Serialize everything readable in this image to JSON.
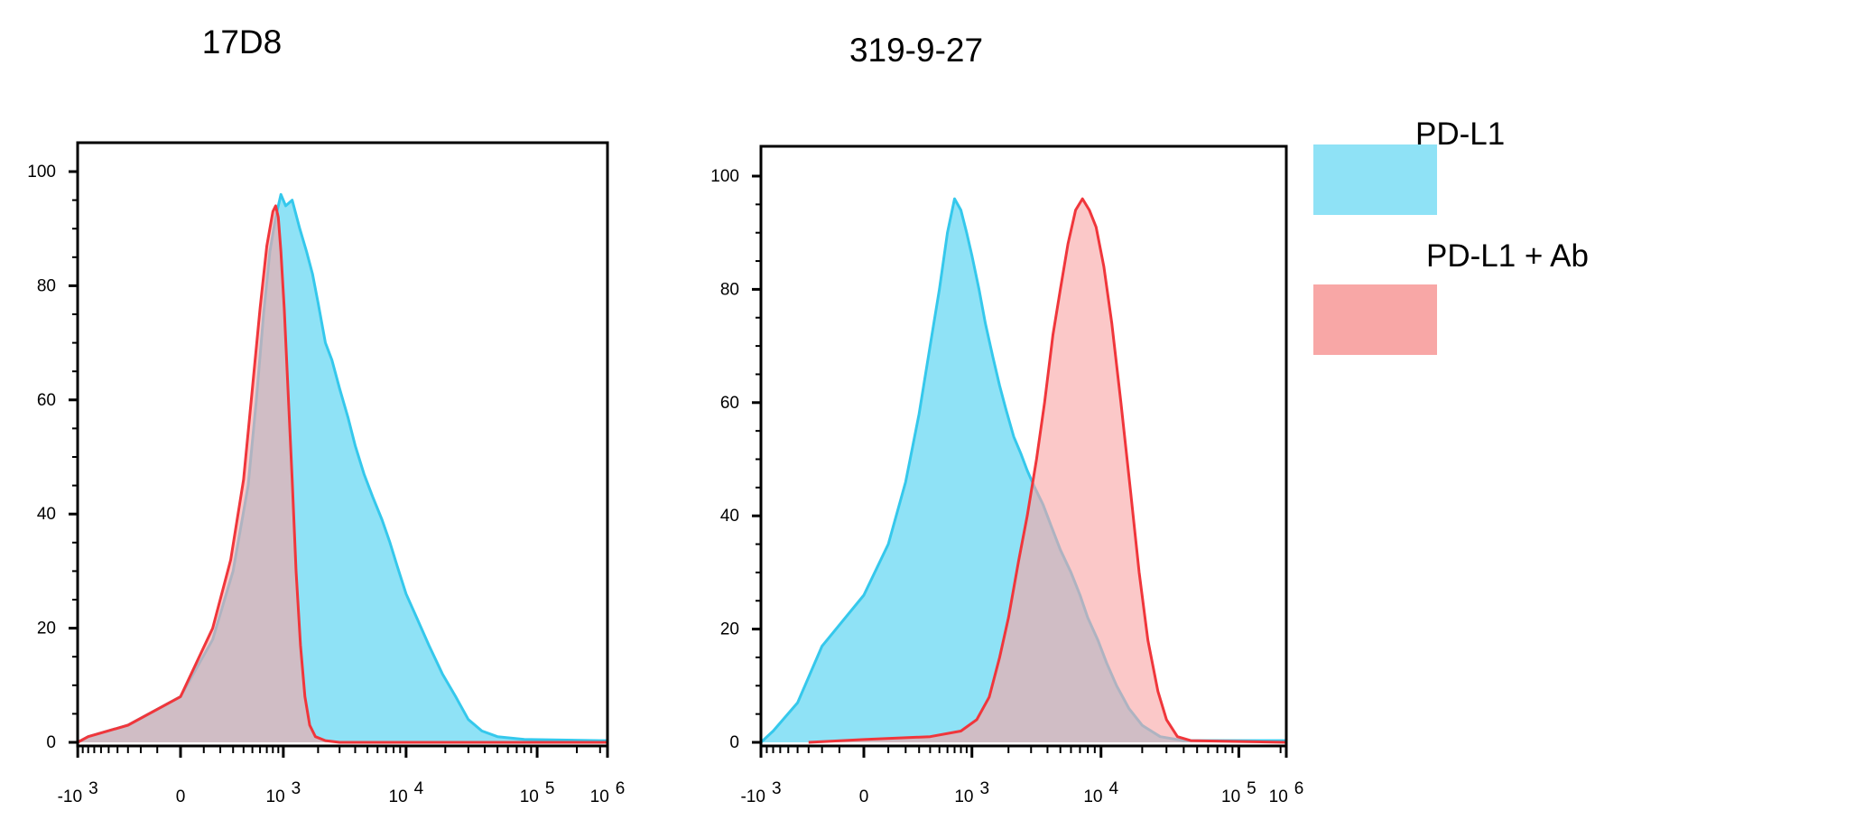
{
  "chart_data": [
    {
      "type": "area",
      "title": "17D8",
      "xscale": "biexponential",
      "x_ticks": [
        {
          "base": "-10",
          "exp": "3"
        },
        {
          "base": "0",
          "exp": ""
        },
        {
          "base": "10",
          "exp": "3"
        },
        {
          "base": "10",
          "exp": "4"
        },
        {
          "base": "10",
          "exp": "5"
        },
        {
          "base": "10",
          "exp": "6"
        }
      ],
      "y_ticks": [
        "0",
        "20",
        "40",
        "60",
        "80",
        "100"
      ],
      "ylim": [
        0,
        100
      ],
      "grid": false,
      "series": [
        {
          "name": "PD-L1",
          "color": "#35c8ec",
          "fill": "#8fe2f6",
          "points": [
            [
              -1800,
              0
            ],
            [
              -800,
              1
            ],
            [
              -300,
              3
            ],
            [
              0,
              8
            ],
            [
              150,
              18
            ],
            [
              300,
              30
            ],
            [
              450,
              45
            ],
            [
              550,
              60
            ],
            [
              650,
              75
            ],
            [
              750,
              86
            ],
            [
              850,
              92
            ],
            [
              950,
              96
            ],
            [
              1050,
              94
            ],
            [
              1200,
              95
            ],
            [
              1400,
              90
            ],
            [
              1600,
              86
            ],
            [
              1800,
              82
            ],
            [
              2000,
              77
            ],
            [
              2300,
              70
            ],
            [
              2600,
              67
            ],
            [
              3000,
              62
            ],
            [
              3500,
              57
            ],
            [
              4000,
              52
            ],
            [
              4700,
              47
            ],
            [
              5500,
              43
            ],
            [
              6500,
              39
            ],
            [
              7500,
              35
            ],
            [
              8500,
              31
            ],
            [
              10000,
              26
            ],
            [
              12000,
              22
            ],
            [
              15000,
              17
            ],
            [
              19000,
              12
            ],
            [
              24000,
              8
            ],
            [
              30000,
              4
            ],
            [
              38000,
              2
            ],
            [
              50000,
              1
            ],
            [
              80000,
              0.5
            ],
            [
              300000,
              0.3
            ],
            [
              1000000,
              0.3
            ]
          ]
        },
        {
          "name": "PD-L1 + Ab",
          "color": "#f0363b",
          "fill": "#f8a7a6",
          "points": [
            [
              -1800,
              0
            ],
            [
              -800,
              1
            ],
            [
              -300,
              3
            ],
            [
              0,
              8
            ],
            [
              150,
              20
            ],
            [
              280,
              32
            ],
            [
              400,
              46
            ],
            [
              500,
              62
            ],
            [
              600,
              76
            ],
            [
              700,
              87
            ],
            [
              800,
              93
            ],
            [
              850,
              94
            ],
            [
              900,
              92
            ],
            [
              950,
              86
            ],
            [
              1020,
              76
            ],
            [
              1100,
              62
            ],
            [
              1200,
              46
            ],
            [
              1300,
              30
            ],
            [
              1420,
              17
            ],
            [
              1550,
              8
            ],
            [
              1700,
              3
            ],
            [
              1900,
              1
            ],
            [
              2300,
              0.3
            ],
            [
              3000,
              0
            ],
            [
              1000000,
              0
            ]
          ]
        }
      ]
    },
    {
      "type": "area",
      "title": "319-9-27",
      "xscale": "biexponential",
      "x_ticks": [
        {
          "base": "-10",
          "exp": "3"
        },
        {
          "base": "0",
          "exp": ""
        },
        {
          "base": "10",
          "exp": "3"
        },
        {
          "base": "10",
          "exp": "4"
        },
        {
          "base": "10",
          "exp": "5"
        },
        {
          "base": "10",
          "exp": "6"
        }
      ],
      "y_ticks": [
        "0",
        "20",
        "40",
        "60",
        "80",
        "100"
      ],
      "ylim": [
        0,
        100
      ],
      "grid": false,
      "series": [
        {
          "name": "PD-L1",
          "color": "#35c8ec",
          "fill": "#8fe2f6",
          "points": [
            [
              -1200,
              0
            ],
            [
              -700,
              2
            ],
            [
              -400,
              7
            ],
            [
              -200,
              17
            ],
            [
              0,
              26
            ],
            [
              100,
              35
            ],
            [
              200,
              46
            ],
            [
              300,
              58
            ],
            [
              400,
              70
            ],
            [
              500,
              80
            ],
            [
              600,
              90
            ],
            [
              700,
              96
            ],
            [
              800,
              94
            ],
            [
              900,
              90
            ],
            [
              1000,
              86
            ],
            [
              1150,
              80
            ],
            [
              1300,
              74
            ],
            [
              1500,
              68
            ],
            [
              1700,
              63
            ],
            [
              1900,
              59
            ],
            [
              2200,
              54
            ],
            [
              2500,
              51
            ],
            [
              2800,
              48
            ],
            [
              3200,
              45
            ],
            [
              3700,
              42
            ],
            [
              4300,
              38
            ],
            [
              5000,
              34
            ],
            [
              6000,
              30
            ],
            [
              7000,
              26
            ],
            [
              8000,
              22
            ],
            [
              9500,
              18
            ],
            [
              11000,
              14
            ],
            [
              13000,
              10
            ],
            [
              16000,
              6
            ],
            [
              20000,
              3
            ],
            [
              27000,
              1
            ],
            [
              40000,
              0.3
            ],
            [
              1000000,
              0.3
            ]
          ]
        },
        {
          "name": "PD-L1 + Ab",
          "color": "#f0363b",
          "fill": "#f8a7a6",
          "points": [
            [
              -300,
              0
            ],
            [
              0,
              0.5
            ],
            [
              400,
              1
            ],
            [
              800,
              2
            ],
            [
              1100,
              4
            ],
            [
              1400,
              8
            ],
            [
              1700,
              15
            ],
            [
              2000,
              22
            ],
            [
              2400,
              32
            ],
            [
              2800,
              40
            ],
            [
              3300,
              50
            ],
            [
              3800,
              60
            ],
            [
              4400,
              72
            ],
            [
              5000,
              80
            ],
            [
              5700,
              88
            ],
            [
              6500,
              94
            ],
            [
              7300,
              96
            ],
            [
              8200,
              94
            ],
            [
              9200,
              91
            ],
            [
              10500,
              84
            ],
            [
              12000,
              74
            ],
            [
              14000,
              60
            ],
            [
              16500,
              44
            ],
            [
              19000,
              30
            ],
            [
              22000,
              18
            ],
            [
              26000,
              9
            ],
            [
              30000,
              4
            ],
            [
              36000,
              1
            ],
            [
              45000,
              0.3
            ],
            [
              1000000,
              0
            ]
          ]
        }
      ]
    }
  ],
  "legend": [
    {
      "label": "PD-L1",
      "color": "#8fe2f6"
    },
    {
      "label": "PD-L1 + Ab",
      "color": "#f8a7a6"
    }
  ]
}
